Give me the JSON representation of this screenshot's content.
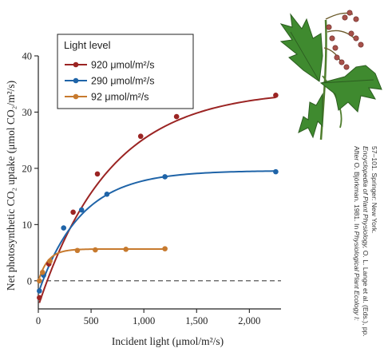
{
  "chart_data": {
    "type": "line",
    "title": "",
    "xlabel": "Incident light (μmol/m²/s)",
    "ylabel": "Net photosynthetic CO₂ uptake (μmol CO₂/m²/s)",
    "xlim": [
      0,
      2300
    ],
    "ylim": [
      -5,
      40
    ],
    "xticks": [
      0,
      500,
      1000,
      1500,
      2000
    ],
    "xtick_labels": [
      "0",
      "500",
      "1,000",
      "1,500",
      "2,000"
    ],
    "yticks": [
      0,
      10,
      20,
      30,
      40
    ],
    "ytick_labels": [
      "0",
      "10",
      "20",
      "30",
      "40"
    ],
    "zero_line": "dashed",
    "grid": false,
    "legend": {
      "title": "Light level",
      "placement": "top-left"
    },
    "series": [
      {
        "name": "920 μmol/m²/s",
        "color": "#9b2423",
        "points": [
          [
            10,
            -3.0
          ],
          [
            100,
            3.0
          ],
          [
            330,
            12.2
          ],
          [
            560,
            19.0
          ],
          [
            970,
            25.7
          ],
          [
            1310,
            29.2
          ],
          [
            2250,
            33.0
          ]
        ],
        "curve_max": 34.0,
        "curve_k": 0.00148,
        "curve_offset": -4.5
      },
      {
        "name": "290 μmol/m²/s",
        "color": "#1f64a8",
        "points": [
          [
            10,
            -1.8
          ],
          [
            50,
            1.0
          ],
          [
            240,
            9.4
          ],
          [
            410,
            12.6
          ],
          [
            650,
            15.4
          ],
          [
            1200,
            18.5
          ],
          [
            2250,
            19.4
          ]
        ],
        "curve_max": 19.6,
        "curve_k": 0.0025,
        "curve_offset": -2.2
      },
      {
        "name": "92 μmol/m²/s",
        "color": "#c77a2e",
        "points": [
          [
            10,
            0.0
          ],
          [
            40,
            1.5
          ],
          [
            110,
            3.5
          ],
          [
            370,
            5.4
          ],
          [
            540,
            5.5
          ],
          [
            830,
            5.6
          ],
          [
            1200,
            5.7
          ]
        ],
        "curve_max": 5.65,
        "curve_k": 0.011,
        "curve_offset": -0.1
      }
    ]
  },
  "credit": {
    "line1_text": "After O. Björkman. 1981. In ",
    "line1_italic": "Physiological Plant Ecology I:",
    "line2_italic": "Encyclopedia of Plant Physiology,",
    "line2_text": " O. L. Lange et al. (Eds.), pp.",
    "line3": "57–101. Springer: New York."
  },
  "illustration": {
    "icon": "plant-leaf-icon",
    "leaf_color": "#3f8a2f",
    "flower_color": "#a7514a"
  }
}
